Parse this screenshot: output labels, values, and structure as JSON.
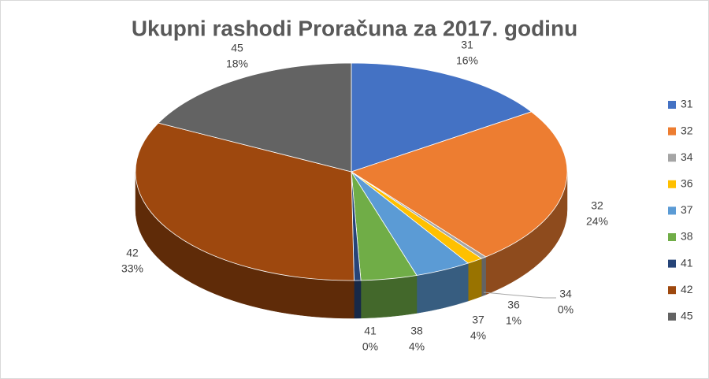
{
  "chart_data": {
    "type": "pie3d",
    "title": "Ukupni rashodi Proračuna za 2017. godinu",
    "categories": [
      "31",
      "32",
      "34",
      "36",
      "37",
      "38",
      "41",
      "42",
      "45"
    ],
    "values": [
      15.7,
      23.6,
      0.4,
      1.2,
      4.2,
      4.2,
      0.5,
      32.6,
      17.6
    ],
    "value_labels": [
      "16%",
      "24%",
      "0%",
      "1%",
      "4%",
      "4%",
      "0%",
      "33%",
      "18%"
    ],
    "colors": [
      "#4472c4",
      "#ed7d31",
      "#a5a5a5",
      "#ffc000",
      "#5b9bd5",
      "#70ad47",
      "#264478",
      "#9e480e",
      "#636363"
    ],
    "legend": "right"
  }
}
